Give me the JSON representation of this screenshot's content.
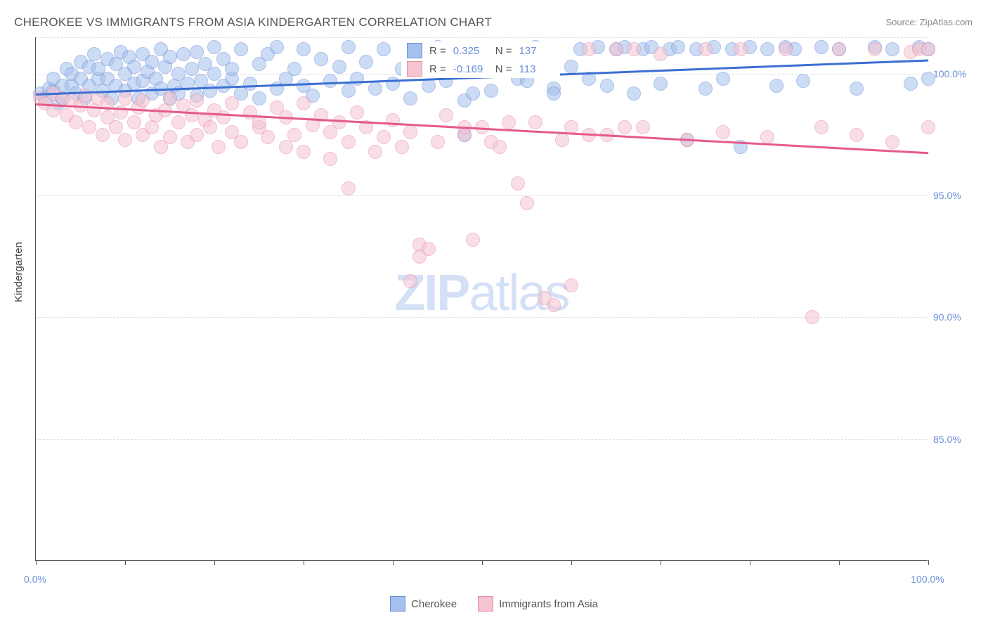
{
  "title": "CHEROKEE VS IMMIGRANTS FROM ASIA KINDERGARTEN CORRELATION CHART",
  "source": "Source: ZipAtlas.com",
  "ylabel": "Kindergarten",
  "watermark_bold": "ZIP",
  "watermark_light": "atlas",
  "chart": {
    "type": "scatter",
    "background_color": "#ffffff",
    "grid_color": "#dddddd",
    "axis_color": "#555555",
    "tick_label_color": "#6a8fd8",
    "xlim": [
      0,
      100
    ],
    "ylim": [
      80,
      101.5
    ],
    "xtick_positions": [
      0,
      10,
      20,
      30,
      40,
      50,
      60,
      70,
      80,
      90,
      100
    ],
    "xtick_labels": {
      "0": "0.0%",
      "100": "100.0%"
    },
    "ytick_positions": [
      85,
      90,
      95,
      100,
      101.5
    ],
    "ytick_labels": {
      "85": "85.0%",
      "90": "90.0%",
      "95": "95.0%",
      "100": "100.0%"
    },
    "marker_radius": 10,
    "marker_opacity": 0.55,
    "marker_stroke_width": 1
  },
  "series": [
    {
      "name": "Cherokee",
      "color_fill": "#a4c0ec",
      "color_stroke": "#6a8fd8",
      "trend_color": "#3b6fd3",
      "trend_width": 2.5,
      "R": "0.325",
      "N": "137",
      "trend_start": {
        "x": 0,
        "y": 99.2
      },
      "trend_end": {
        "x": 100,
        "y": 100.6
      },
      "points": [
        [
          0.5,
          99.2
        ],
        [
          1,
          99.0
        ],
        [
          1.5,
          99.4
        ],
        [
          2,
          99.3
        ],
        [
          2,
          99.8
        ],
        [
          2.5,
          98.8
        ],
        [
          3,
          99.5
        ],
        [
          3,
          99.0
        ],
        [
          3.5,
          100.2
        ],
        [
          4,
          99.5
        ],
        [
          4,
          100.0
        ],
        [
          4.5,
          99.2
        ],
        [
          5,
          99.8
        ],
        [
          5,
          100.5
        ],
        [
          5.5,
          99.0
        ],
        [
          6,
          100.3
        ],
        [
          6,
          99.5
        ],
        [
          6.5,
          100.8
        ],
        [
          7,
          99.8
        ],
        [
          7,
          100.2
        ],
        [
          7.5,
          99.3
        ],
        [
          8,
          100.6
        ],
        [
          8,
          99.8
        ],
        [
          8.5,
          99.0
        ],
        [
          9,
          100.4
        ],
        [
          9,
          99.5
        ],
        [
          9.5,
          100.9
        ],
        [
          10,
          100.0
        ],
        [
          10,
          99.3
        ],
        [
          10.5,
          100.7
        ],
        [
          11,
          99.6
        ],
        [
          11,
          100.3
        ],
        [
          11.5,
          99.0
        ],
        [
          12,
          100.8
        ],
        [
          12,
          99.7
        ],
        [
          12.5,
          100.1
        ],
        [
          13,
          99.2
        ],
        [
          13,
          100.5
        ],
        [
          13.5,
          99.8
        ],
        [
          14,
          101.0
        ],
        [
          14,
          99.4
        ],
        [
          14.5,
          100.3
        ],
        [
          15,
          99.0
        ],
        [
          15,
          100.7
        ],
        [
          15.5,
          99.5
        ],
        [
          16,
          100.0
        ],
        [
          16,
          99.2
        ],
        [
          16.5,
          100.8
        ],
        [
          17,
          99.6
        ],
        [
          17.5,
          100.2
        ],
        [
          18,
          99.1
        ],
        [
          18,
          100.9
        ],
        [
          18.5,
          99.7
        ],
        [
          19,
          100.4
        ],
        [
          19.5,
          99.3
        ],
        [
          20,
          100.0
        ],
        [
          20,
          101.1
        ],
        [
          21,
          99.5
        ],
        [
          21,
          100.6
        ],
        [
          22,
          99.8
        ],
        [
          22,
          100.2
        ],
        [
          23,
          99.2
        ],
        [
          23,
          101.0
        ],
        [
          24,
          99.6
        ],
        [
          25,
          100.4
        ],
        [
          25,
          99.0
        ],
        [
          26,
          100.8
        ],
        [
          27,
          99.4
        ],
        [
          27,
          101.1
        ],
        [
          28,
          99.8
        ],
        [
          29,
          100.2
        ],
        [
          30,
          99.5
        ],
        [
          30,
          101.0
        ],
        [
          31,
          99.1
        ],
        [
          32,
          100.6
        ],
        [
          33,
          99.7
        ],
        [
          34,
          100.3
        ],
        [
          35,
          99.3
        ],
        [
          35,
          101.1
        ],
        [
          36,
          99.8
        ],
        [
          37,
          100.5
        ],
        [
          38,
          99.4
        ],
        [
          39,
          101.0
        ],
        [
          40,
          99.6
        ],
        [
          41,
          100.2
        ],
        [
          42,
          99.0
        ],
        [
          43,
          100.8
        ],
        [
          44,
          99.5
        ],
        [
          45,
          101.1
        ],
        [
          46,
          99.7
        ],
        [
          47,
          100.4
        ],
        [
          48,
          98.9
        ],
        [
          49,
          99.2
        ],
        [
          50,
          101.0
        ],
        [
          51,
          99.3
        ],
        [
          52,
          100.6
        ],
        [
          54,
          99.8
        ],
        [
          56,
          101.1
        ],
        [
          58,
          99.4
        ],
        [
          60,
          100.3
        ],
        [
          61,
          101.0
        ],
        [
          62,
          99.8
        ],
        [
          63,
          101.1
        ],
        [
          64,
          99.5
        ],
        [
          65,
          101.0
        ],
        [
          66,
          101.1
        ],
        [
          67,
          99.2
        ],
        [
          68,
          101.0
        ],
        [
          69,
          101.1
        ],
        [
          70,
          99.6
        ],
        [
          71,
          101.0
        ],
        [
          72,
          101.1
        ],
        [
          73,
          97.3
        ],
        [
          74,
          101.0
        ],
        [
          75,
          99.4
        ],
        [
          76,
          101.1
        ],
        [
          77,
          99.8
        ],
        [
          78,
          101.0
        ],
        [
          79,
          97.0
        ],
        [
          80,
          101.1
        ],
        [
          82,
          101.0
        ],
        [
          83,
          99.5
        ],
        [
          84,
          101.1
        ],
        [
          85,
          101.0
        ],
        [
          86,
          99.7
        ],
        [
          88,
          101.1
        ],
        [
          90,
          101.0
        ],
        [
          92,
          99.4
        ],
        [
          94,
          101.1
        ],
        [
          96,
          101.0
        ],
        [
          98,
          99.6
        ],
        [
          99,
          101.1
        ],
        [
          100,
          101.0
        ],
        [
          100,
          99.8
        ],
        [
          48,
          97.5
        ],
        [
          55,
          99.7
        ],
        [
          58,
          99.2
        ]
      ]
    },
    {
      "name": "Immigrants from Asia",
      "color_fill": "#f5c4d1",
      "color_stroke": "#e88ba8",
      "trend_color": "#e65a8a",
      "trend_width": 2.5,
      "R": "-0.169",
      "N": "113",
      "trend_start": {
        "x": 0,
        "y": 98.8
      },
      "trend_end": {
        "x": 100,
        "y": 96.8
      },
      "points": [
        [
          0.5,
          99.0
        ],
        [
          1,
          98.8
        ],
        [
          2,
          99.2
        ],
        [
          2,
          98.5
        ],
        [
          3,
          99.0
        ],
        [
          3.5,
          98.3
        ],
        [
          4,
          98.9
        ],
        [
          4.5,
          98.0
        ],
        [
          5,
          98.7
        ],
        [
          5.5,
          99.1
        ],
        [
          6,
          97.8
        ],
        [
          6.5,
          98.5
        ],
        [
          7,
          99.0
        ],
        [
          7.5,
          97.5
        ],
        [
          8,
          98.2
        ],
        [
          8,
          98.8
        ],
        [
          9,
          97.8
        ],
        [
          9.5,
          98.4
        ],
        [
          10,
          99.0
        ],
        [
          10,
          97.3
        ],
        [
          11,
          98.0
        ],
        [
          11.5,
          98.6
        ],
        [
          12,
          97.5
        ],
        [
          12,
          98.9
        ],
        [
          13,
          97.8
        ],
        [
          13.5,
          98.3
        ],
        [
          14,
          97.0
        ],
        [
          14.5,
          98.5
        ],
        [
          15,
          99.0
        ],
        [
          15,
          97.4
        ],
        [
          16,
          98.0
        ],
        [
          16.5,
          98.7
        ],
        [
          17,
          97.2
        ],
        [
          17.5,
          98.3
        ],
        [
          18,
          98.9
        ],
        [
          18,
          97.5
        ],
        [
          19,
          98.1
        ],
        [
          19.5,
          97.8
        ],
        [
          20,
          98.5
        ],
        [
          20.5,
          97.0
        ],
        [
          21,
          98.2
        ],
        [
          22,
          97.6
        ],
        [
          22,
          98.8
        ],
        [
          23,
          97.2
        ],
        [
          24,
          98.4
        ],
        [
          25,
          97.8
        ],
        [
          25,
          98.0
        ],
        [
          26,
          97.4
        ],
        [
          27,
          98.6
        ],
        [
          28,
          97.0
        ],
        [
          28,
          98.2
        ],
        [
          29,
          97.5
        ],
        [
          30,
          98.8
        ],
        [
          30,
          96.8
        ],
        [
          31,
          97.9
        ],
        [
          32,
          98.3
        ],
        [
          33,
          96.5
        ],
        [
          33,
          97.6
        ],
        [
          34,
          98.0
        ],
        [
          35,
          95.3
        ],
        [
          35,
          97.2
        ],
        [
          36,
          98.4
        ],
        [
          37,
          97.8
        ],
        [
          38,
          96.8
        ],
        [
          39,
          97.4
        ],
        [
          40,
          98.1
        ],
        [
          41,
          97.0
        ],
        [
          42,
          91.5
        ],
        [
          42,
          97.6
        ],
        [
          43,
          93.0
        ],
        [
          43,
          92.5
        ],
        [
          44,
          92.8
        ],
        [
          45,
          97.2
        ],
        [
          46,
          98.3
        ],
        [
          48,
          97.5
        ],
        [
          49,
          93.2
        ],
        [
          50,
          97.8
        ],
        [
          52,
          97.0
        ],
        [
          54,
          95.5
        ],
        [
          55,
          94.7
        ],
        [
          56,
          98.0
        ],
        [
          57,
          90.8
        ],
        [
          58,
          90.5
        ],
        [
          59,
          97.3
        ],
        [
          60,
          91.3
        ],
        [
          60,
          97.8
        ],
        [
          62,
          101.0
        ],
        [
          64,
          97.5
        ],
        [
          65,
          101.0
        ],
        [
          67,
          101.0
        ],
        [
          68,
          97.8
        ],
        [
          70,
          100.8
        ],
        [
          73,
          97.3
        ],
        [
          75,
          101.0
        ],
        [
          77,
          97.6
        ],
        [
          79,
          101.0
        ],
        [
          82,
          97.4
        ],
        [
          84,
          101.0
        ],
        [
          87,
          90.0
        ],
        [
          88,
          97.8
        ],
        [
          90,
          101.0
        ],
        [
          92,
          97.5
        ],
        [
          94,
          101.0
        ],
        [
          96,
          97.2
        ],
        [
          98,
          100.9
        ],
        [
          99,
          101.0
        ],
        [
          100,
          101.0
        ],
        [
          100,
          97.8
        ],
        [
          48,
          97.8
        ],
        [
          51,
          97.2
        ],
        [
          53,
          98.0
        ],
        [
          62,
          97.5
        ],
        [
          66,
          97.8
        ]
      ]
    }
  ],
  "stats_labels": {
    "R": "R =",
    "N": "N ="
  },
  "legend": {
    "position": "bottom",
    "items": [
      "Cherokee",
      "Immigrants from Asia"
    ]
  }
}
